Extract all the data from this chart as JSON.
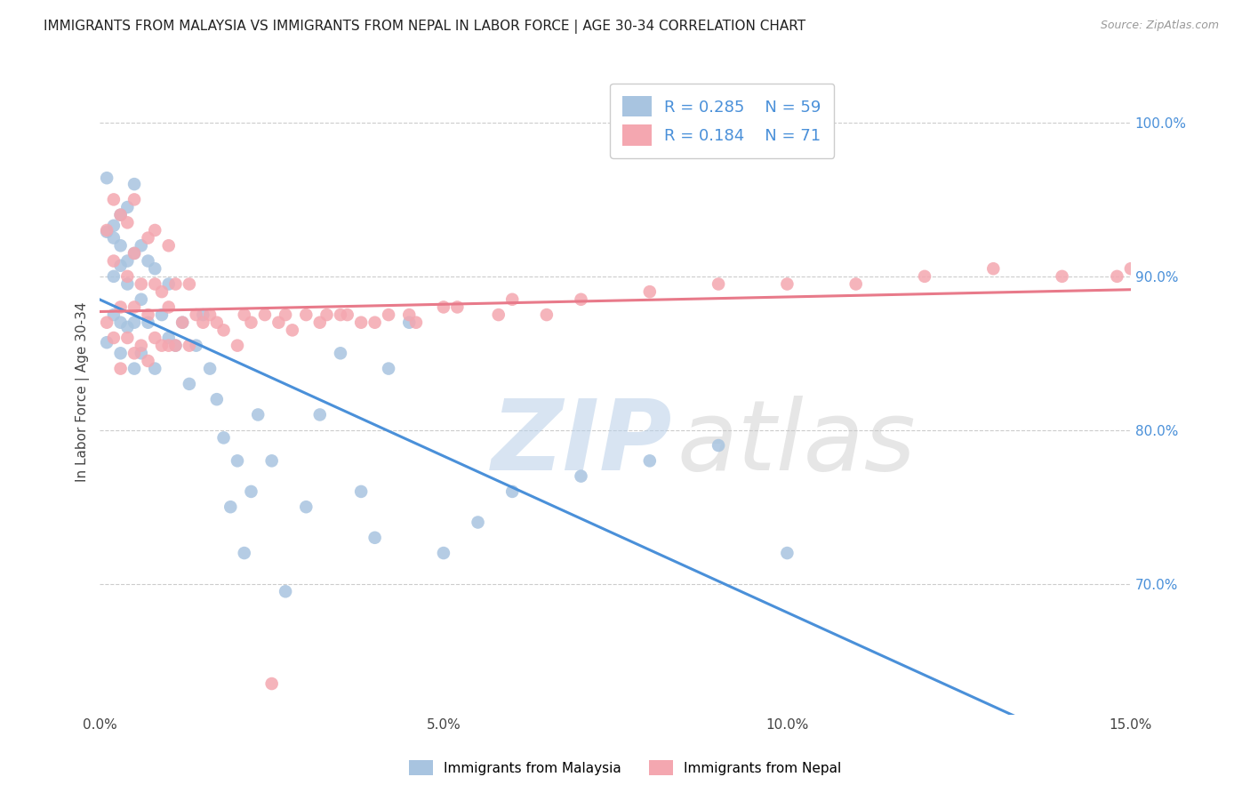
{
  "title": "IMMIGRANTS FROM MALAYSIA VS IMMIGRANTS FROM NEPAL IN LABOR FORCE | AGE 30-34 CORRELATION CHART",
  "source": "Source: ZipAtlas.com",
  "ylabel": "In Labor Force | Age 30-34",
  "xlim": [
    0.0,
    0.15
  ],
  "ylim": [
    0.615,
    1.035
  ],
  "xticks": [
    0.0,
    0.05,
    0.1,
    0.15
  ],
  "xticklabels": [
    "0.0%",
    "5.0%",
    "10.0%",
    "15.0%"
  ],
  "yticks": [
    0.7,
    0.8,
    0.9,
    1.0
  ],
  "yticklabels": [
    "70.0%",
    "80.0%",
    "90.0%",
    "100.0%"
  ],
  "malaysia_R": 0.285,
  "malaysia_N": 59,
  "nepal_R": 0.184,
  "nepal_N": 71,
  "malaysia_color": "#a8c4e0",
  "nepal_color": "#f4a7b0",
  "malaysia_line_color": "#4a90d9",
  "nepal_line_color": "#e87a8a",
  "legend_label_malaysia": "Immigrants from Malaysia",
  "legend_label_nepal": "Immigrants from Nepal",
  "background_color": "#ffffff",
  "grid_color": "#cccccc",
  "malaysia_x": [
    0.001,
    0.001,
    0.001,
    0.002,
    0.002,
    0.002,
    0.002,
    0.003,
    0.003,
    0.003,
    0.003,
    0.003,
    0.004,
    0.004,
    0.004,
    0.004,
    0.005,
    0.005,
    0.005,
    0.005,
    0.006,
    0.006,
    0.006,
    0.007,
    0.007,
    0.008,
    0.008,
    0.009,
    0.01,
    0.01,
    0.011,
    0.012,
    0.013,
    0.014,
    0.015,
    0.016,
    0.017,
    0.018,
    0.019,
    0.02,
    0.021,
    0.022,
    0.023,
    0.025,
    0.027,
    0.03,
    0.032,
    0.035,
    0.038,
    0.04,
    0.042,
    0.045,
    0.05,
    0.055,
    0.06,
    0.07,
    0.08,
    0.09,
    0.1
  ],
  "malaysia_y": [
    0.857,
    0.929,
    0.964,
    0.875,
    0.925,
    0.9,
    0.933,
    0.85,
    0.87,
    0.92,
    0.907,
    0.94,
    0.867,
    0.895,
    0.91,
    0.945,
    0.84,
    0.87,
    0.915,
    0.96,
    0.85,
    0.885,
    0.92,
    0.87,
    0.91,
    0.84,
    0.905,
    0.875,
    0.86,
    0.895,
    0.855,
    0.87,
    0.83,
    0.855,
    0.875,
    0.84,
    0.82,
    0.795,
    0.75,
    0.78,
    0.72,
    0.76,
    0.81,
    0.78,
    0.695,
    0.75,
    0.81,
    0.85,
    0.76,
    0.73,
    0.84,
    0.87,
    0.72,
    0.74,
    0.76,
    0.77,
    0.78,
    0.79,
    0.72
  ],
  "nepal_x": [
    0.001,
    0.001,
    0.002,
    0.002,
    0.002,
    0.003,
    0.003,
    0.003,
    0.004,
    0.004,
    0.004,
    0.005,
    0.005,
    0.005,
    0.005,
    0.006,
    0.006,
    0.007,
    0.007,
    0.007,
    0.008,
    0.008,
    0.008,
    0.009,
    0.009,
    0.01,
    0.01,
    0.01,
    0.011,
    0.011,
    0.012,
    0.013,
    0.013,
    0.014,
    0.015,
    0.016,
    0.017,
    0.018,
    0.02,
    0.021,
    0.022,
    0.024,
    0.026,
    0.028,
    0.03,
    0.033,
    0.035,
    0.038,
    0.042,
    0.046,
    0.05,
    0.06,
    0.07,
    0.08,
    0.09,
    0.1,
    0.11,
    0.12,
    0.13,
    0.14,
    0.148,
    0.15,
    0.025,
    0.027,
    0.032,
    0.036,
    0.04,
    0.045,
    0.052,
    0.058,
    0.065
  ],
  "nepal_y": [
    0.87,
    0.93,
    0.86,
    0.91,
    0.95,
    0.84,
    0.88,
    0.94,
    0.86,
    0.9,
    0.935,
    0.85,
    0.88,
    0.915,
    0.95,
    0.855,
    0.895,
    0.845,
    0.875,
    0.925,
    0.86,
    0.895,
    0.93,
    0.855,
    0.89,
    0.855,
    0.88,
    0.92,
    0.855,
    0.895,
    0.87,
    0.855,
    0.895,
    0.875,
    0.87,
    0.875,
    0.87,
    0.865,
    0.855,
    0.875,
    0.87,
    0.875,
    0.87,
    0.865,
    0.875,
    0.875,
    0.875,
    0.87,
    0.875,
    0.87,
    0.88,
    0.885,
    0.885,
    0.89,
    0.895,
    0.895,
    0.895,
    0.9,
    0.905,
    0.9,
    0.9,
    0.905,
    0.635,
    0.875,
    0.87,
    0.875,
    0.87,
    0.875,
    0.88,
    0.875,
    0.875
  ]
}
